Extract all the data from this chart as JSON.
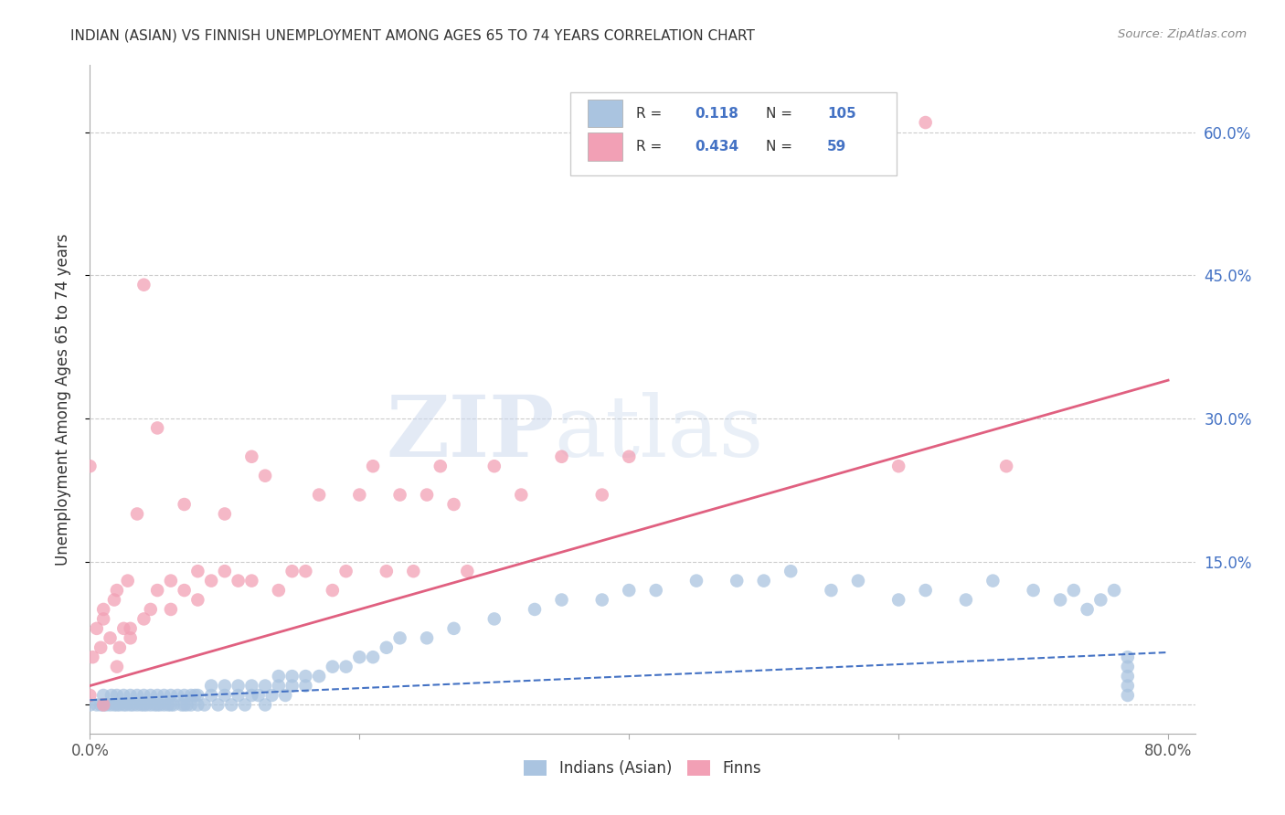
{
  "title": "INDIAN (ASIAN) VS FINNISH UNEMPLOYMENT AMONG AGES 65 TO 74 YEARS CORRELATION CHART",
  "source": "Source: ZipAtlas.com",
  "ylabel": "Unemployment Among Ages 65 to 74 years",
  "xlim": [
    0.0,
    0.82
  ],
  "ylim": [
    -0.03,
    0.67
  ],
  "ytick_positions": [
    0.0,
    0.15,
    0.3,
    0.45,
    0.6
  ],
  "yticklabels_right": [
    "",
    "15.0%",
    "30.0%",
    "45.0%",
    "60.0%"
  ],
  "watermark_zip": "ZIP",
  "watermark_atlas": "atlas",
  "legend_R_indian": "0.118",
  "legend_N_indian": "105",
  "legend_R_finn": "0.434",
  "legend_N_finn": "59",
  "indian_color": "#aac4e0",
  "finn_color": "#f2a0b5",
  "indian_line_color": "#4472c4",
  "finn_line_color": "#e06080",
  "background_color": "#ffffff",
  "grid_color": "#cccccc",
  "title_color": "#333333",
  "axis_label_color": "#333333",
  "indian_scatter_x": [
    0.0,
    0.005,
    0.008,
    0.01,
    0.01,
    0.012,
    0.015,
    0.016,
    0.018,
    0.02,
    0.02,
    0.022,
    0.025,
    0.025,
    0.027,
    0.03,
    0.03,
    0.032,
    0.035,
    0.035,
    0.038,
    0.04,
    0.04,
    0.042,
    0.045,
    0.045,
    0.048,
    0.05,
    0.05,
    0.052,
    0.055,
    0.055,
    0.058,
    0.06,
    0.06,
    0.062,
    0.065,
    0.068,
    0.07,
    0.07,
    0.072,
    0.075,
    0.075,
    0.078,
    0.08,
    0.08,
    0.085,
    0.09,
    0.09,
    0.095,
    0.1,
    0.1,
    0.105,
    0.11,
    0.11,
    0.115,
    0.12,
    0.12,
    0.125,
    0.13,
    0.13,
    0.135,
    0.14,
    0.14,
    0.145,
    0.15,
    0.15,
    0.16,
    0.16,
    0.17,
    0.18,
    0.19,
    0.2,
    0.21,
    0.22,
    0.23,
    0.25,
    0.27,
    0.3,
    0.33,
    0.35,
    0.38,
    0.4,
    0.42,
    0.45,
    0.48,
    0.5,
    0.52,
    0.55,
    0.57,
    0.6,
    0.62,
    0.65,
    0.67,
    0.7,
    0.72,
    0.73,
    0.74,
    0.75,
    0.76,
    0.77,
    0.77,
    0.77,
    0.77,
    0.77
  ],
  "indian_scatter_y": [
    0.0,
    0.0,
    0.0,
    0.0,
    0.01,
    0.0,
    0.0,
    0.01,
    0.0,
    0.0,
    0.01,
    0.0,
    0.0,
    0.01,
    0.0,
    0.0,
    0.01,
    0.0,
    0.0,
    0.01,
    0.0,
    0.0,
    0.01,
    0.0,
    0.0,
    0.01,
    0.0,
    0.0,
    0.01,
    0.0,
    0.0,
    0.01,
    0.0,
    0.0,
    0.01,
    0.0,
    0.01,
    0.0,
    0.0,
    0.01,
    0.0,
    0.01,
    0.0,
    0.01,
    0.0,
    0.01,
    0.0,
    0.01,
    0.02,
    0.0,
    0.01,
    0.02,
    0.0,
    0.01,
    0.02,
    0.0,
    0.01,
    0.02,
    0.01,
    0.02,
    0.0,
    0.01,
    0.02,
    0.03,
    0.01,
    0.02,
    0.03,
    0.02,
    0.03,
    0.03,
    0.04,
    0.04,
    0.05,
    0.05,
    0.06,
    0.07,
    0.07,
    0.08,
    0.09,
    0.1,
    0.11,
    0.11,
    0.12,
    0.12,
    0.13,
    0.13,
    0.13,
    0.14,
    0.12,
    0.13,
    0.11,
    0.12,
    0.11,
    0.13,
    0.12,
    0.11,
    0.12,
    0.1,
    0.11,
    0.12,
    0.01,
    0.02,
    0.03,
    0.04,
    0.05
  ],
  "finn_scatter_x": [
    0.0,
    0.0,
    0.002,
    0.005,
    0.008,
    0.01,
    0.01,
    0.01,
    0.015,
    0.018,
    0.02,
    0.02,
    0.022,
    0.025,
    0.028,
    0.03,
    0.03,
    0.035,
    0.04,
    0.04,
    0.045,
    0.05,
    0.05,
    0.06,
    0.06,
    0.07,
    0.07,
    0.08,
    0.08,
    0.09,
    0.1,
    0.1,
    0.11,
    0.12,
    0.12,
    0.13,
    0.14,
    0.15,
    0.16,
    0.17,
    0.18,
    0.19,
    0.2,
    0.21,
    0.22,
    0.23,
    0.24,
    0.25,
    0.26,
    0.27,
    0.28,
    0.3,
    0.32,
    0.35,
    0.38,
    0.4,
    0.6,
    0.62,
    0.68
  ],
  "finn_scatter_y": [
    0.01,
    0.25,
    0.05,
    0.08,
    0.06,
    0.0,
    0.09,
    0.1,
    0.07,
    0.11,
    0.04,
    0.12,
    0.06,
    0.08,
    0.13,
    0.07,
    0.08,
    0.2,
    0.09,
    0.44,
    0.1,
    0.29,
    0.12,
    0.1,
    0.13,
    0.12,
    0.21,
    0.14,
    0.11,
    0.13,
    0.14,
    0.2,
    0.13,
    0.13,
    0.26,
    0.24,
    0.12,
    0.14,
    0.14,
    0.22,
    0.12,
    0.14,
    0.22,
    0.25,
    0.14,
    0.22,
    0.14,
    0.22,
    0.25,
    0.21,
    0.14,
    0.25,
    0.22,
    0.26,
    0.22,
    0.26,
    0.25,
    0.61,
    0.25
  ],
  "indian_trend_x": [
    0.0,
    0.8
  ],
  "indian_trend_y": [
    0.005,
    0.055
  ],
  "finn_trend_x": [
    0.0,
    0.8
  ],
  "finn_trend_y": [
    0.02,
    0.34
  ]
}
